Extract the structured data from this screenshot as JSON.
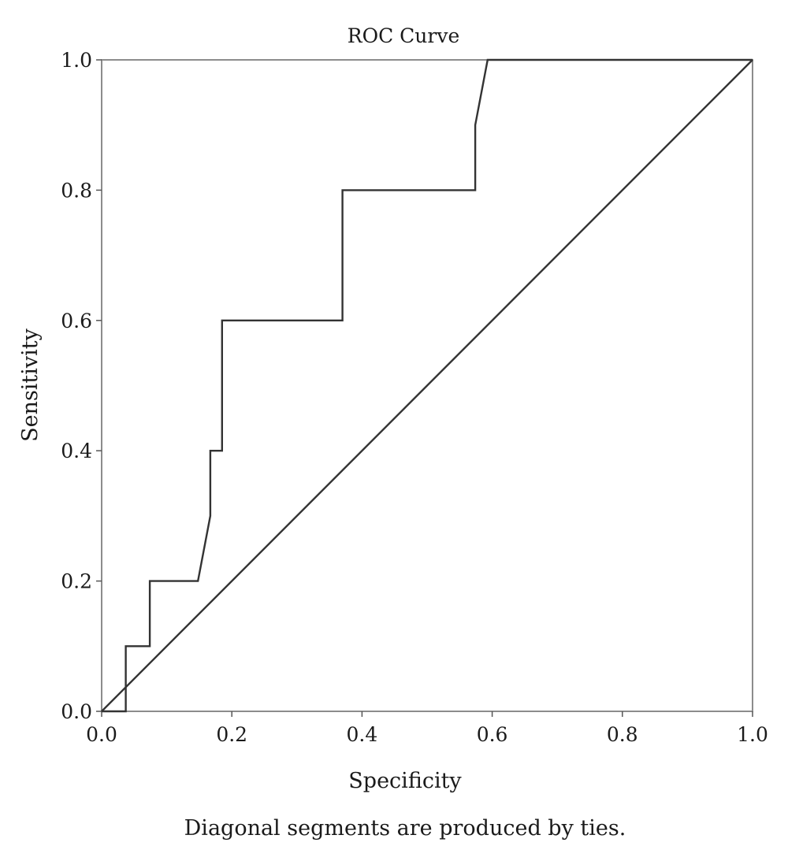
{
  "chart_data": {
    "type": "line",
    "title": "ROC Curve",
    "xlabel": "Specificity",
    "ylabel": "Sensitivity",
    "footnote": "Diagonal segments are produced by ties.",
    "xlim": [
      0,
      1
    ],
    "ylim": [
      0,
      1
    ],
    "xticks": [
      "0.0",
      "0.2",
      "0.4",
      "0.6",
      "0.8",
      "1.0"
    ],
    "yticks": [
      "0.0",
      "0.2",
      "0.4",
      "0.6",
      "0.8",
      "1.0"
    ],
    "grid": false,
    "series": [
      {
        "x": [
          0,
          0.037,
          0.037,
          0.074,
          0.074,
          0.148,
          0.167,
          0.167,
          0.185,
          0.185,
          0.37,
          0.37,
          0.574,
          0.574,
          0.593,
          1.0
        ],
        "y": [
          0,
          0,
          0.1,
          0.1,
          0.2,
          0.2,
          0.3,
          0.4,
          0.4,
          0.6,
          0.6,
          0.8,
          0.8,
          0.9,
          1.0,
          1.0
        ],
        "color": "#333333"
      },
      {
        "x": [
          0,
          1
        ],
        "y": [
          0,
          1
        ],
        "color": "#333333"
      }
    ]
  }
}
